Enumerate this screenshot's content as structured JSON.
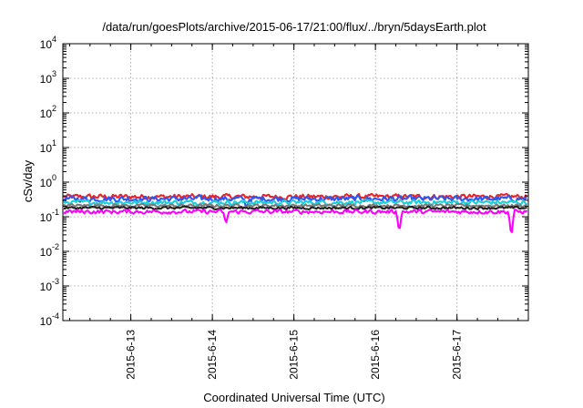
{
  "chart_data": {
    "type": "line",
    "title": "/data/run/goesPlots/archive/2015-06-17/21:00/flux/../bryn/5daysEarth.plot",
    "xlabel": "Coordinated Universal Time (UTC)",
    "ylabel": "cSv/day",
    "yscale": "log",
    "ylim": [
      0.0001,
      10000
    ],
    "y_ticks": [
      {
        "base": "10",
        "exp": "-4"
      },
      {
        "base": "10",
        "exp": "-3"
      },
      {
        "base": "10",
        "exp": "-2"
      },
      {
        "base": "10",
        "exp": "-1"
      },
      {
        "base": "10",
        "exp": "0"
      },
      {
        "base": "10",
        "exp": "1"
      },
      {
        "base": "10",
        "exp": "2"
      },
      {
        "base": "10",
        "exp": "3"
      },
      {
        "base": "10",
        "exp": "4"
      }
    ],
    "x_range": [
      "2015-06-12T04:00",
      "2015-06-17T21:00"
    ],
    "x_ticks": [
      "2015-6-13",
      "2015-6-14",
      "2015-6-15",
      "2015-6-16",
      "2015-6-17"
    ],
    "grid": true,
    "series": [
      {
        "color": "#e8242b",
        "level": 0.38,
        "noise": 0.2,
        "dips": []
      },
      {
        "color": "#2f56f0",
        "level": 0.33,
        "noise": 0.22,
        "dips": [
          {
            "x": "2015-06-14T10:00",
            "value": 0.18
          }
        ]
      },
      {
        "color": "#18d0d6",
        "level": 0.26,
        "noise": 0.18,
        "dips": []
      },
      {
        "color": "#7a7a7a",
        "level": 0.21,
        "noise": 0.12,
        "dips": []
      },
      {
        "color": "#222222",
        "level": 0.18,
        "noise": 0.1,
        "dips": []
      },
      {
        "color": "#ff00ff",
        "level": 0.14,
        "noise": 0.16,
        "dips": [
          {
            "x": "2015-06-14T04:00",
            "value": 0.06
          },
          {
            "x": "2015-06-16T07:00",
            "value": 0.035
          },
          {
            "x": "2015-06-17T16:00",
            "value": 0.025
          }
        ]
      }
    ]
  }
}
